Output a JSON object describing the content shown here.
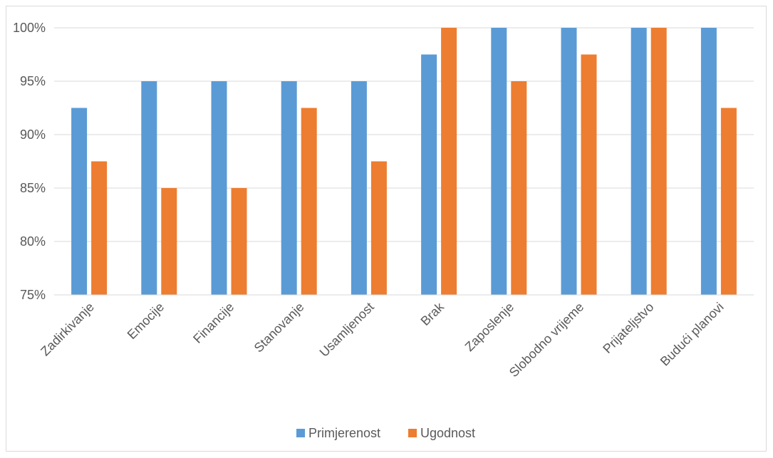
{
  "chart_data": {
    "type": "bar",
    "categories": [
      "Zadirkivanje",
      "Emocije",
      "Financije",
      "Stanovanje",
      "Usamljenost",
      "Brak",
      "Zaposlenje",
      "Slobodno vrijeme",
      "Prijateljstvo",
      "Budući planovi"
    ],
    "series": [
      {
        "name": "Primjerenost",
        "color": "#5b9bd5",
        "values": [
          92.5,
          95,
          95,
          95,
          95,
          97.5,
          100,
          100,
          100,
          100
        ]
      },
      {
        "name": "Ugodnost",
        "color": "#ed7d31",
        "values": [
          87.5,
          85,
          85,
          92.5,
          87.5,
          100,
          95,
          97.5,
          100,
          92.5
        ]
      }
    ],
    "yticks": [
      "75%",
      "80%",
      "85%",
      "90%",
      "95%",
      "100%"
    ],
    "ylim": [
      75,
      100
    ],
    "grid": true,
    "legend_position": "bottom"
  }
}
